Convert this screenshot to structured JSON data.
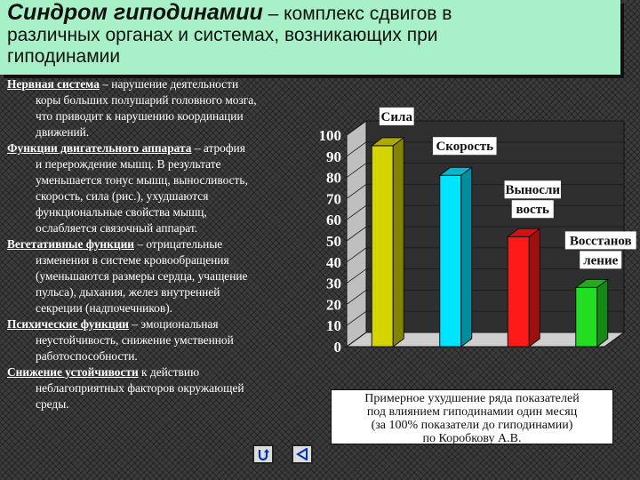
{
  "title": {
    "bold": "Синдром гиподинамии",
    "rest": " – комплекс сдвигов в",
    "line2": "различных органах и системах, возникающих при",
    "line3": "гиподинамии"
  },
  "paragraphs": [
    {
      "head": "Нервная система",
      "lines": [
        " – нарушение деятельности",
        "коры больших полушарий головного мозга,",
        "что приводит к нарушению координации",
        "движений."
      ]
    },
    {
      "head": "Функции двигательного аппарата",
      "lines": [
        " – атрофия",
        "и перерождение мышц. В результате",
        "уменьшается тонус мышц, выносливость,",
        "скорость, сила (рис.), ухудшаются",
        "функциональные свойства мышц,",
        "ослабляется связочный аппарат."
      ]
    },
    {
      "head": "Вегетативные функции",
      "lines": [
        " – отрицательные",
        "изменения в системе кровообращения",
        "(уменьшаются размеры сердца, учащение",
        "пульса), дыхания, желез внутренней",
        "секреции (надпочечников)."
      ]
    },
    {
      "head": "Психические функции",
      "lines": [
        " – эмоциональная",
        "неустойчивость, снижение умственной",
        "работоспособности."
      ]
    },
    {
      "head": "Снижение устойчивости",
      "lines": [
        " к действию",
        "неблагоприятных факторов окружающей",
        "среды."
      ]
    }
  ],
  "chart_data": {
    "type": "bar",
    "categories": [
      "Сила",
      "Скорость",
      "Выносливость",
      "Восстановление"
    ],
    "category_label_lines": [
      [
        "Сила"
      ],
      [
        "Скорость"
      ],
      [
        "Выносли",
        "вость"
      ],
      [
        "Восстанов",
        "ление"
      ]
    ],
    "values": [
      95,
      81,
      52,
      28
    ],
    "colors": [
      "#d4d400",
      "#00e5ff",
      "#ff1a1a",
      "#22dd22"
    ],
    "ylim": [
      0,
      100
    ],
    "yticks": [
      0,
      10,
      20,
      30,
      40,
      50,
      60,
      70,
      80,
      90,
      100
    ],
    "grid": true,
    "title": "",
    "xlabel": "",
    "ylabel": ""
  },
  "caption": {
    "lines": [
      "Примерное ухудшение ряда показателей",
      "под влиянием гиподинамии один месяц",
      "(за 100% показатели до гиподинамии)",
      "по Коробкову А.В."
    ]
  },
  "nav": {
    "return_icon": "return-arrow-icon",
    "back_icon": "back-triangle-icon"
  }
}
